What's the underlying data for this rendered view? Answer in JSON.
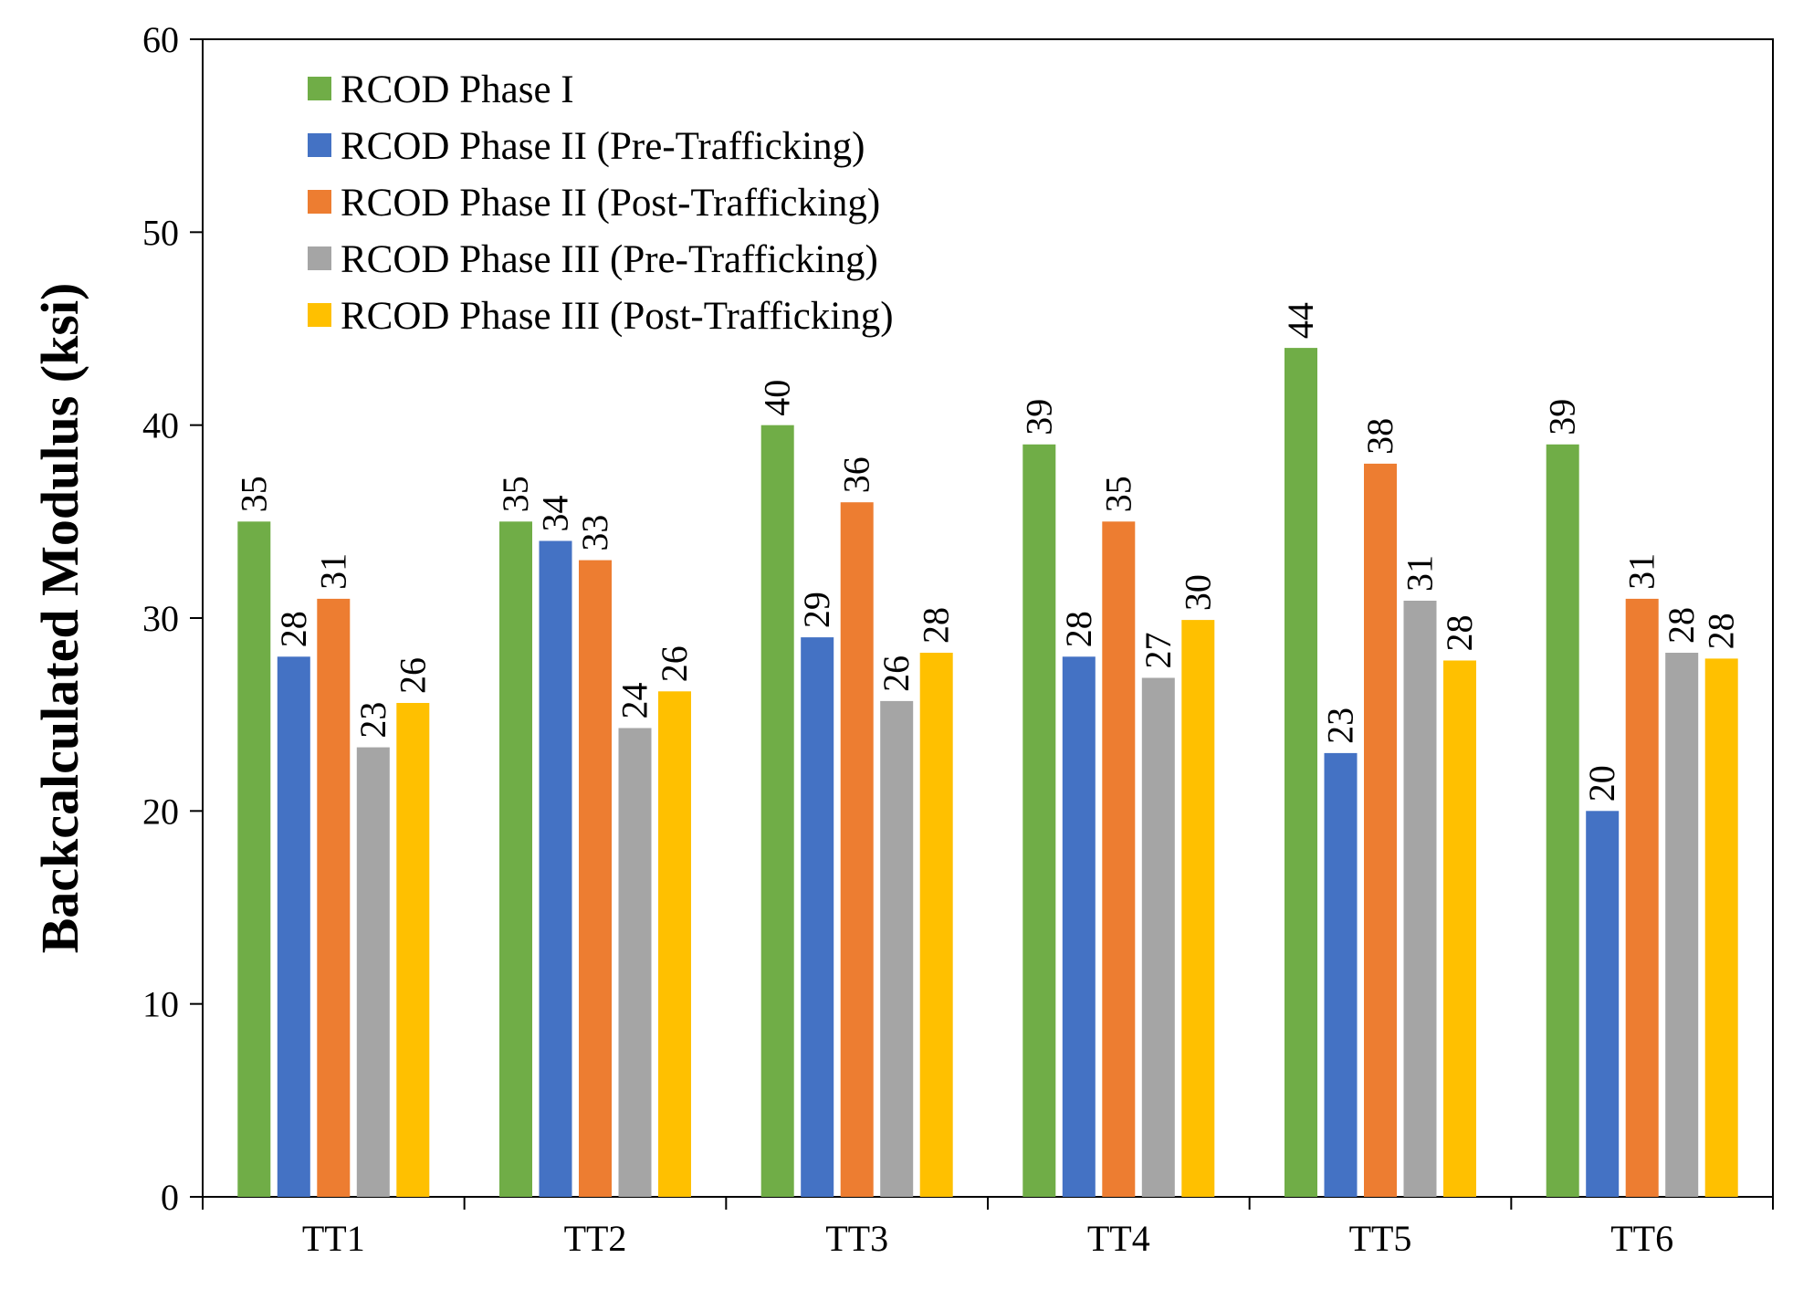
{
  "chart_data": {
    "type": "bar",
    "categories": [
      "TT1",
      "TT2",
      "TT3",
      "TT4",
      "TT5",
      "TT6"
    ],
    "series": [
      {
        "name": "RCOD Phase I",
        "color": "#70AD47",
        "values": [
          35,
          35,
          40,
          39,
          44,
          39
        ],
        "labels": [
          "35",
          "35",
          "40",
          "39",
          "44",
          "39"
        ]
      },
      {
        "name": "RCOD Phase II (Pre-Trafficking)",
        "color": "#4472C4",
        "values": [
          28,
          34,
          29,
          28,
          23,
          20
        ],
        "labels": [
          "28",
          "34",
          "29",
          "28",
          "23",
          "20"
        ]
      },
      {
        "name": "RCOD Phase II (Post-Trafficking)",
        "color": "#ED7D31",
        "values": [
          31,
          33,
          36,
          35,
          38,
          31
        ],
        "labels": [
          "31",
          "33",
          "36",
          "35",
          "38",
          "31"
        ]
      },
      {
        "name": "RCOD Phase III (Pre-Trafficking)",
        "color": "#A5A5A5",
        "values": [
          23.3,
          24.3,
          25.7,
          26.9,
          30.9,
          28.2
        ],
        "labels": [
          "23",
          "24",
          "26",
          "27",
          "31",
          "28"
        ]
      },
      {
        "name": "RCOD Phase III (Post-Trafficking)",
        "color": "#FFC000",
        "values": [
          25.6,
          26.2,
          28.2,
          29.9,
          27.8,
          27.9
        ],
        "labels": [
          "26",
          "26",
          "28",
          "30",
          "28",
          "28"
        ]
      }
    ],
    "xlabel": "",
    "ylabel": "Backcalculated Modulus (ksi)",
    "ylim": [
      0,
      60
    ],
    "yticks": [
      "0",
      "10",
      "20",
      "30",
      "40",
      "50",
      "60"
    ],
    "grid": false,
    "legend_position": "top-left"
  }
}
